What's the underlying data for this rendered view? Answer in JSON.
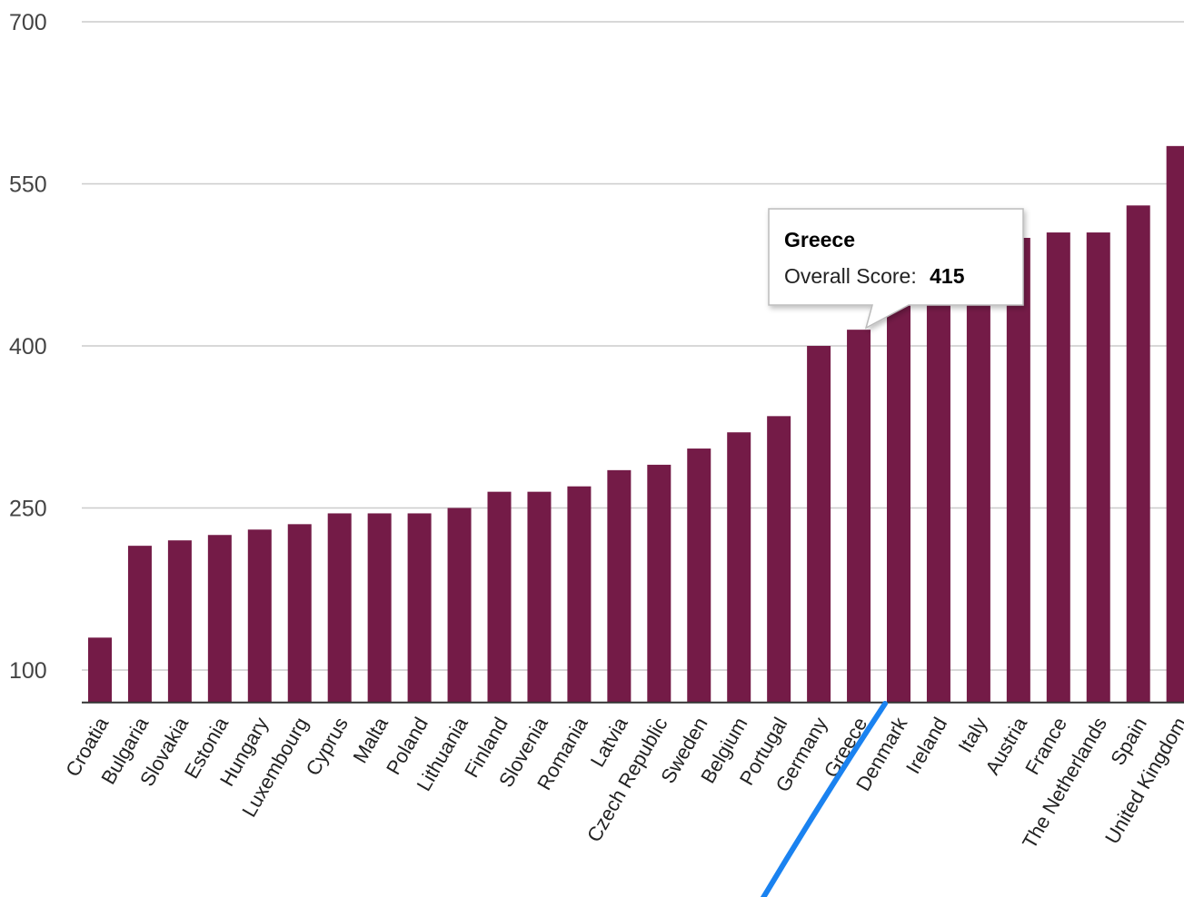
{
  "chart_data": {
    "type": "bar",
    "title": "",
    "xlabel": "",
    "ylabel": "",
    "ylim": [
      70,
      700
    ],
    "yticks": [
      100,
      250,
      400,
      550,
      700
    ],
    "grid": true,
    "legend": "none",
    "bar_color": "#741b47",
    "grid_color": "#cccccc",
    "baseline_color": "#333333",
    "categories": [
      "Croatia",
      "Bulgaria",
      "Slovakia",
      "Estonia",
      "Hungary",
      "Luxembourg",
      "Cyprus",
      "Malta",
      "Poland",
      "Lithuania",
      "Finland",
      "Slovenia",
      "Romania",
      "Latvia",
      "Czech Republic",
      "Sweden",
      "Belgium",
      "Portugal",
      "Germany",
      "Greece",
      "Denmark",
      "Ireland",
      "Italy",
      "Austria",
      "France",
      "The Netherlands",
      "Spain",
      "United Kingdom"
    ],
    "values": [
      130,
      215,
      220,
      225,
      230,
      235,
      245,
      245,
      245,
      250,
      265,
      265,
      270,
      285,
      290,
      305,
      320,
      335,
      400,
      415,
      440,
      450,
      470,
      500,
      505,
      505,
      530,
      585
    ],
    "tooltip": {
      "category": "Greece",
      "label": "Overall Score:",
      "value": "415"
    },
    "annotation_color": "#1a82f0"
  }
}
